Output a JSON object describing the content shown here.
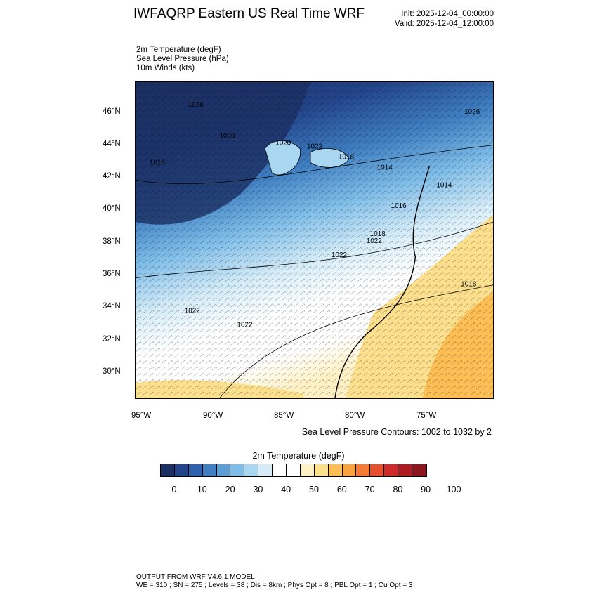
{
  "title": "IWFAQRP Eastern US Real Time WRF",
  "init": "Init: 2025-12-04_00:00:00",
  "valid": "Valid: 2025-12-04_12:00:00",
  "fields": [
    "2m Temperature   (degF)",
    "Sea Level Pressure   (hPa)",
    "10m Winds   (kts)"
  ],
  "lat_labels": [
    "46°N",
    "44°N",
    "42°N",
    "40°N",
    "38°N",
    "36°N",
    "34°N",
    "32°N",
    "30°N"
  ],
  "lon_labels": [
    "95°W",
    "90°W",
    "85°W",
    "80°W",
    "75°W"
  ],
  "contour_note": "Sea Level Pressure Contours: 1002 to 1032 by 2",
  "isobar_labels": [
    "1026",
    "1020",
    "1020",
    "1022",
    "1018",
    "1014",
    "1014",
    "1016",
    "1026",
    "1018",
    "1022",
    "1022",
    "1022",
    "1018",
    "1018",
    "1022"
  ],
  "colorbar": {
    "title": "2m Temperature  (degF)",
    "colors": [
      "#1b2f63",
      "#23448a",
      "#2f62ac",
      "#3f7fc2",
      "#5b9ed5",
      "#7fbde8",
      "#a9d7f2",
      "#d5ecf8",
      "#ffffff",
      "#ffffff",
      "#fff1c4",
      "#fde08d",
      "#fdbf55",
      "#f9a33e",
      "#f47a36",
      "#e6502e",
      "#ce2a28",
      "#ad1a22",
      "#8c1620"
    ],
    "labels": [
      "0",
      "10",
      "20",
      "30",
      "40",
      "50",
      "60",
      "70",
      "80",
      "90",
      "100"
    ]
  },
  "footer": {
    "line1": "OUTPUT FROM WRF V4.6.1 MODEL",
    "line2": "WE = 310 ; SN = 275 ; Levels = 38 ; Dis = 8km ; Phys Opt = 8 ; PBL Opt = 1 ; Cu Opt = 3"
  },
  "colors": {
    "cold": "#1b2f63",
    "warm": "#fdbf55",
    "border": "#000000"
  }
}
